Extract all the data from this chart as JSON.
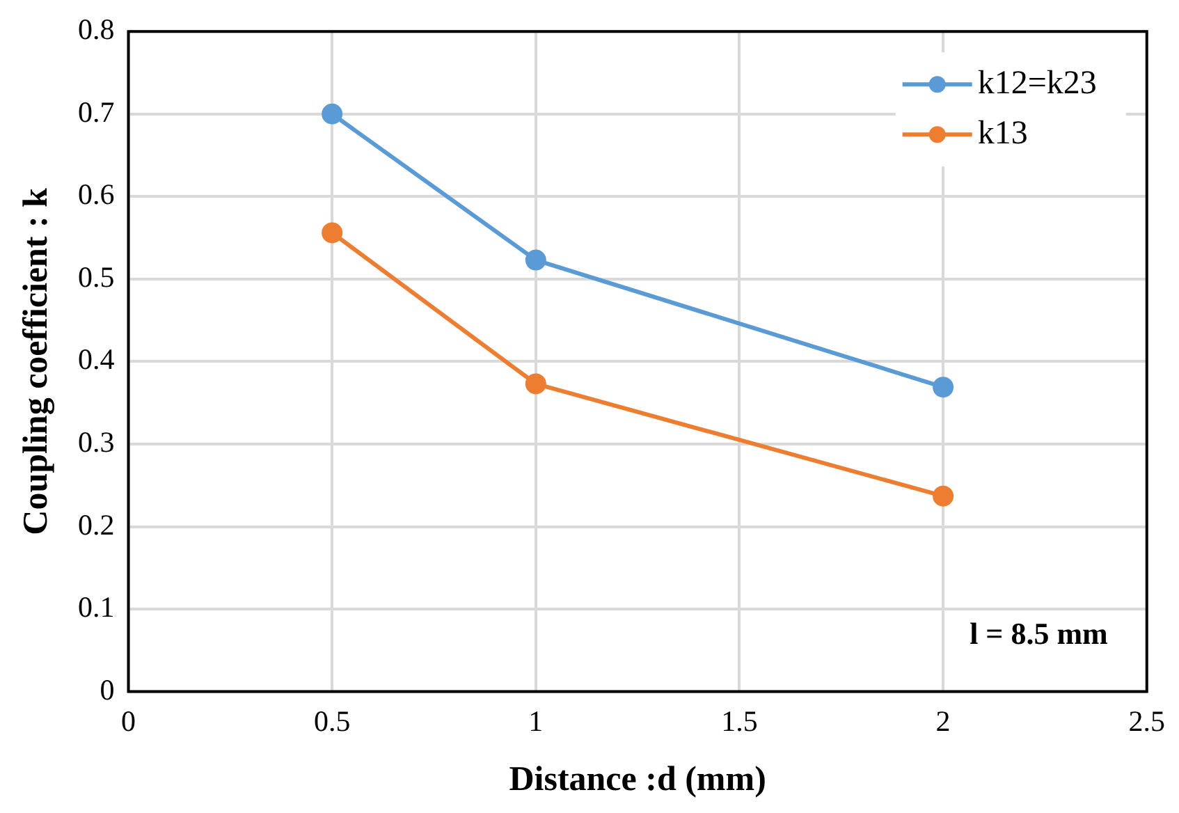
{
  "chart_data": {
    "type": "line",
    "xlabel": "Distance :d (mm)",
    "ylabel": "Coupling coefficient : k",
    "x": [
      0.5,
      1,
      2
    ],
    "series": [
      {
        "name": "k12=k23",
        "color": "#5b9bd5",
        "values": [
          0.7,
          0.523,
          0.369
        ]
      },
      {
        "name": "k13",
        "color": "#ed7d31",
        "values": [
          0.556,
          0.373,
          0.237
        ]
      }
    ],
    "xlim": [
      0,
      2.5
    ],
    "xticks": [
      0,
      0.5,
      1,
      1.5,
      2,
      2.5
    ],
    "ylim": [
      0,
      0.8
    ],
    "yticks": [
      0,
      0.1,
      0.2,
      0.3,
      0.4,
      0.5,
      0.6,
      0.7,
      0.8
    ],
    "grid": true,
    "legend": "top right",
    "marker": "circle",
    "line_style": "solid",
    "annotations": [
      "l = 8.5 mm"
    ]
  }
}
